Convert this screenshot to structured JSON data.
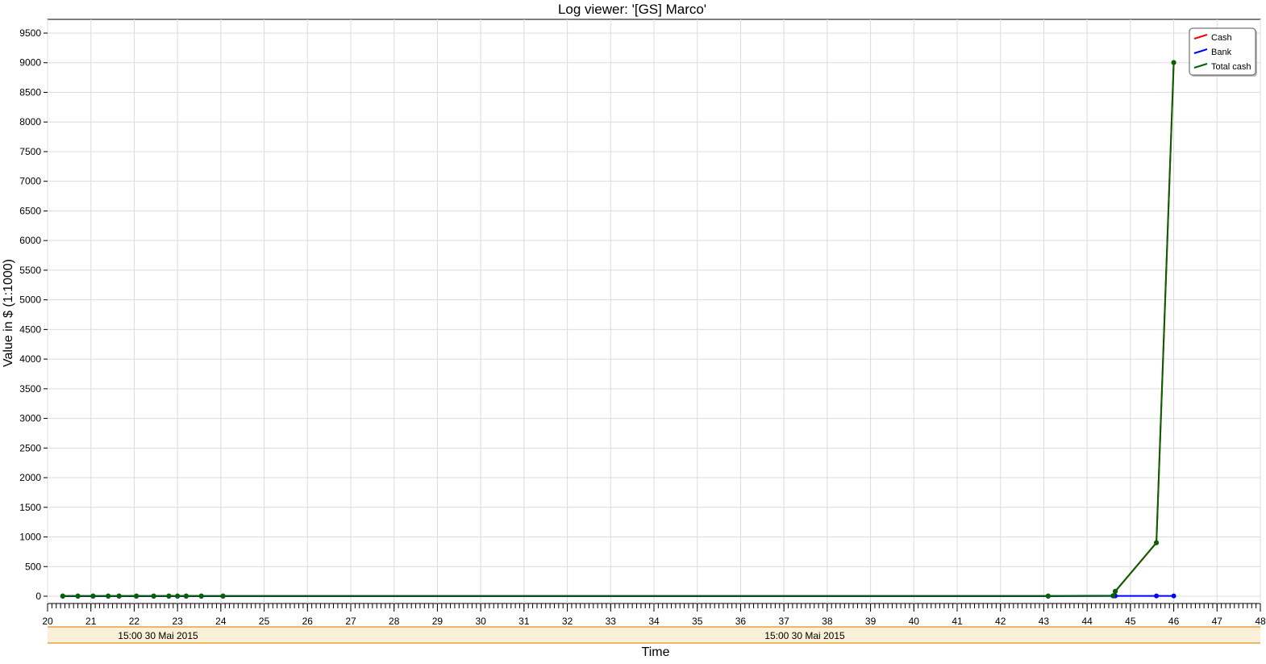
{
  "chart_data": {
    "type": "line",
    "title": "Log viewer: '[GS] Marco'",
    "xlabel": "Time",
    "ylabel": "Value in $ (1:1000)",
    "xlim": [
      20,
      48
    ],
    "ylim": [
      0,
      9500
    ],
    "x_ticks": [
      "20",
      "21",
      "22",
      "23",
      "24",
      "25",
      "26",
      "27",
      "28",
      "29",
      "30",
      "31",
      "32",
      "33",
      "34",
      "35",
      "36",
      "37",
      "38",
      "39",
      "40",
      "41",
      "42",
      "43",
      "44",
      "45",
      "46",
      "47",
      "48"
    ],
    "y_ticks": [
      "0",
      "500",
      "1000",
      "1500",
      "2000",
      "2500",
      "3000",
      "3500",
      "4000",
      "4500",
      "5000",
      "5500",
      "6000",
      "6500",
      "7000",
      "7500",
      "8000",
      "8500",
      "9000",
      "9500"
    ],
    "grid": true,
    "legend_position": "top-right",
    "date_band_labels": [
      "15:00 30 Mai 2015",
      "15:00 30 Mai 2015"
    ],
    "series": [
      {
        "name": "Cash",
        "color": "#ff0000",
        "x": [
          20.35,
          20.7,
          21.05,
          21.4,
          21.65,
          22.05,
          22.45,
          22.8,
          23.0,
          23.2,
          23.55,
          24.05,
          43.1,
          44.6,
          44.65,
          45.6,
          46.0
        ],
        "y": [
          5,
          5,
          5,
          5,
          5,
          5,
          5,
          5,
          5,
          5,
          5,
          5,
          5,
          5,
          80,
          900,
          9000
        ]
      },
      {
        "name": "Bank",
        "color": "#0000ff",
        "x": [
          20.35,
          20.7,
          21.05,
          21.4,
          21.65,
          22.05,
          22.45,
          22.8,
          23.0,
          23.2,
          23.55,
          24.05,
          43.1,
          44.6,
          44.65,
          45.6,
          46.0
        ],
        "y": [
          0,
          0,
          0,
          0,
          0,
          0,
          0,
          0,
          0,
          0,
          0,
          0,
          0,
          5,
          5,
          5,
          5
        ]
      },
      {
        "name": "Total cash",
        "color": "#006400",
        "x": [
          20.35,
          20.7,
          21.05,
          21.4,
          21.65,
          22.05,
          22.45,
          22.8,
          23.0,
          23.2,
          23.55,
          24.05,
          43.1,
          44.6,
          44.65,
          45.6,
          46.0
        ],
        "y": [
          5,
          5,
          5,
          5,
          5,
          5,
          5,
          5,
          5,
          5,
          5,
          5,
          5,
          10,
          85,
          905,
          9005
        ]
      }
    ]
  }
}
